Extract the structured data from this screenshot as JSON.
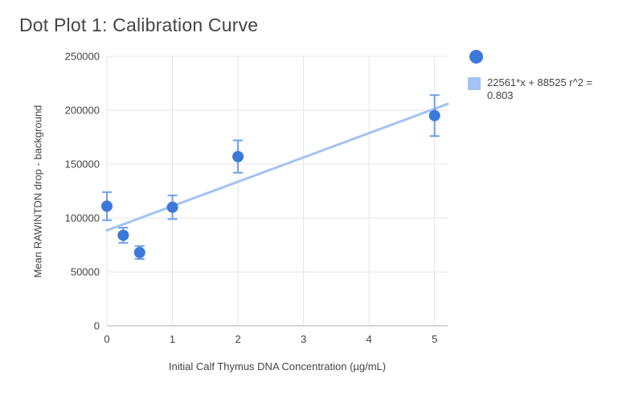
{
  "chart_data": {
    "type": "scatter",
    "title": "Dot Plot 1: Calibration Curve",
    "xlabel": "Initial Calf Thymus DNA Concentration (µg/mL)",
    "ylabel": "Mean RAWINTDN drop - background",
    "xlim": [
      0,
      5.2
    ],
    "ylim": [
      0,
      250000
    ],
    "x_ticks": [
      0,
      1,
      2,
      3,
      4,
      5
    ],
    "y_ticks": [
      0,
      50000,
      100000,
      150000,
      200000,
      250000
    ],
    "grid": true,
    "legend_position": "right",
    "points": [
      {
        "x": 0,
        "y": 111000,
        "err": 13000
      },
      {
        "x": 0.25,
        "y": 84000,
        "err": 7000
      },
      {
        "x": 0.5,
        "y": 68000,
        "err": 6000
      },
      {
        "x": 1,
        "y": 110000,
        "err": 11000
      },
      {
        "x": 2,
        "y": 157000,
        "err": 15000
      },
      {
        "x": 5,
        "y": 195000,
        "err": 19000
      }
    ],
    "trendline": {
      "slope": 22561,
      "intercept": 88525,
      "r2": 0.803,
      "label": "22561*x + 88525 r^2 = 0.803"
    },
    "colors": {
      "point": "#3c78d8",
      "error_bar": "#6d9eeb",
      "trend": "#a4c2f4",
      "gridline": "#e6e6e6",
      "axis": "#b0b0b0",
      "text": "#444444",
      "title": "#454545"
    }
  }
}
